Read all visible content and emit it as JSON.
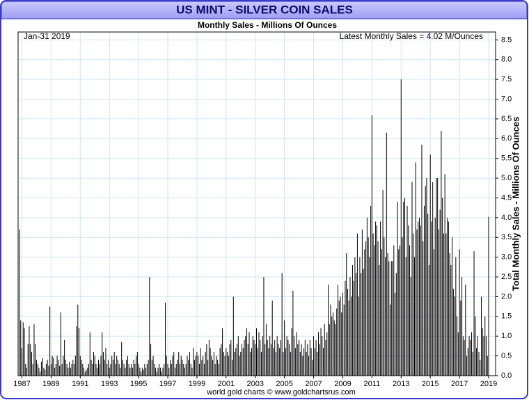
{
  "chart_data": {
    "type": "bar",
    "title": "US MINT - SILVER COIN SALES",
    "subtitle": "Monthly Sales - Millions Of Ounces",
    "date_label": "Jan-31  2019",
    "annotation": "Latest Monthly Sales = 4.02 M/Ounces",
    "y_label": "Total Monthly Sales - Millions Of Ounces",
    "footer": "world gold charts © www.goldchartsrus.com",
    "color": "#000000",
    "grid": true,
    "ylim": [
      0,
      8.7
    ],
    "yticks": [
      {
        "value": 0,
        "label": "0.0"
      },
      0.5,
      {
        "value": 1,
        "label": "1.0"
      },
      1.5,
      {
        "value": 2,
        "label": "2.0"
      },
      2.5,
      {
        "value": 3,
        "label": "3.0"
      },
      3.5,
      {
        "value": 4,
        "label": "4.0"
      },
      4.5,
      {
        "value": 5,
        "label": "5.0"
      },
      5.5,
      {
        "value": 6,
        "label": "6.0"
      },
      6.5,
      {
        "value": 7,
        "label": "7.0"
      },
      7.5,
      {
        "value": 8,
        "label": "8.0"
      },
      8.5
    ],
    "categories": [
      null,
      null,
      "1987",
      null,
      null,
      null,
      null,
      null,
      null,
      null,
      null,
      null,
      null,
      null,
      null,
      null,
      null,
      null,
      null,
      null,
      null,
      null,
      null,
      null,
      null,
      null,
      "1989",
      null,
      null,
      null,
      null,
      null,
      null,
      null,
      null,
      null,
      null,
      null,
      null,
      null,
      null,
      null,
      null,
      null,
      null,
      null,
      null,
      null,
      null,
      null,
      "1991",
      null,
      null,
      null,
      null,
      null,
      null,
      null,
      null,
      null,
      null,
      null,
      null,
      null,
      null,
      null,
      null,
      null,
      null,
      null,
      null,
      null,
      null,
      null,
      "1993",
      null,
      null,
      null,
      null,
      null,
      null,
      null,
      null,
      null,
      null,
      null,
      null,
      null,
      null,
      null,
      null,
      null,
      null,
      null,
      null,
      null,
      null,
      null,
      "1995",
      null,
      null,
      null,
      null,
      null,
      null,
      null,
      null,
      null,
      null,
      null,
      null,
      null,
      null,
      null,
      null,
      null,
      null,
      null,
      null,
      null,
      null,
      null,
      "1997",
      null,
      null,
      null,
      null,
      null,
      null,
      null,
      null,
      null,
      null,
      null,
      null,
      null,
      null,
      null,
      null,
      null,
      null,
      null,
      null,
      null,
      null,
      null,
      "1999",
      null,
      null,
      null,
      null,
      null,
      null,
      null,
      null,
      null,
      null,
      null,
      null,
      null,
      null,
      null,
      null,
      null,
      null,
      null,
      null,
      null,
      null,
      null,
      "2001",
      null,
      null,
      null,
      null,
      null,
      null,
      null,
      null,
      null,
      null,
      null,
      null,
      null,
      null,
      null,
      null,
      null,
      null,
      null,
      null,
      null,
      null,
      null,
      "2003",
      null,
      null,
      null,
      null,
      null,
      null,
      null,
      null,
      null,
      null,
      null,
      null,
      null,
      null,
      null,
      null,
      null,
      null,
      null,
      null,
      null,
      null,
      null,
      "2005",
      null,
      null,
      null,
      null,
      null,
      null,
      null,
      null,
      null,
      null,
      null,
      null,
      null,
      null,
      null,
      null,
      null,
      null,
      null,
      null,
      null,
      null,
      null,
      "2007",
      null,
      null,
      null,
      null,
      null,
      null,
      null,
      null,
      null,
      null,
      null,
      null,
      null,
      null,
      null,
      null,
      null,
      null,
      null,
      null,
      null,
      null,
      null,
      "2009",
      null,
      null,
      null,
      null,
      null,
      null,
      null,
      null,
      null,
      null,
      null,
      null,
      null,
      null,
      null,
      null,
      null,
      null,
      null,
      null,
      null,
      null,
      null,
      "2011",
      null,
      null,
      null,
      null,
      null,
      null,
      null,
      null,
      null,
      null,
      null,
      null,
      null,
      null,
      null,
      null,
      null,
      null,
      null,
      null,
      null,
      null,
      null,
      "2013",
      null,
      null,
      null,
      null,
      null,
      null,
      null,
      null,
      null,
      null,
      null,
      null,
      null,
      null,
      null,
      null,
      null,
      null,
      null,
      null,
      null,
      null,
      null,
      "2015",
      null,
      null,
      null,
      null,
      null,
      null,
      null,
      null,
      null,
      null,
      null,
      null,
      null,
      null,
      null,
      null,
      null,
      null,
      null,
      null,
      null,
      null,
      null,
      "2017",
      null,
      null,
      null,
      null,
      null,
      null,
      null,
      null,
      null,
      null,
      null,
      null,
      null,
      null,
      null,
      null,
      null,
      null,
      null,
      null,
      null,
      null,
      null,
      "2019"
    ],
    "values": [
      3.7,
      1.4,
      0.7,
      1.35,
      1.2,
      0.3,
      0.2,
      0.8,
      1.25,
      0.8,
      0.6,
      0.3,
      1.3,
      0.8,
      0.4,
      0.3,
      0.2,
      0.1,
      0.35,
      0.45,
      0.2,
      0.15,
      0.3,
      0.4,
      0.25,
      1.75,
      0.3,
      0.5,
      0.45,
      0.2,
      0.3,
      0.5,
      0.4,
      0.25,
      1.6,
      0.3,
      0.5,
      0.9,
      0.4,
      0.3,
      0.2,
      0.35,
      0.2,
      0.3,
      0.4,
      0.3,
      0.5,
      1.25,
      1.8,
      1.2,
      0.5,
      0.4,
      0.3,
      0.2,
      0.1,
      0.15,
      0.2,
      0.3,
      1.1,
      0.4,
      0.3,
      0.6,
      0.5,
      0.3,
      0.2,
      0.4,
      0.3,
      0.5,
      1.1,
      0.6,
      0.4,
      0.7,
      0.3,
      0.4,
      0.2,
      0.3,
      0.5,
      0.4,
      0.6,
      0.3,
      0.5,
      0.4,
      0.3,
      0.2,
      0.85,
      0.4,
      0.3,
      0.2,
      0.4,
      0.5,
      0.3,
      0.2,
      0.3,
      0.2,
      0.4,
      0.3,
      0.5,
      0.6,
      0.3,
      0.2,
      0.1,
      0.2,
      0.15,
      0.3,
      0.2,
      0.3,
      0.4,
      2.5,
      0.8,
      0.4,
      0.5,
      0.3,
      0.2,
      0.1,
      0.2,
      0.3,
      0.2,
      0.1,
      0.2,
      0.3,
      1.85,
      0.5,
      0.3,
      0.2,
      0.4,
      0.3,
      0.5,
      0.6,
      0.2,
      0.3,
      0.4,
      0.6,
      0.3,
      0.5,
      0.4,
      0.3,
      0.2,
      0.3,
      0.5,
      0.4,
      0.6,
      0.3,
      0.2,
      0.7,
      0.4,
      0.5,
      0.6,
      0.5,
      0.3,
      0.7,
      0.4,
      0.5,
      0.3,
      0.6,
      0.8,
      0.4,
      0.9,
      0.7,
      0.5,
      0.4,
      0.6,
      0.3,
      0.5,
      0.4,
      0.3,
      0.7,
      0.8,
      1.2,
      0.6,
      0.5,
      0.7,
      0.6,
      0.5,
      0.8,
      0.9,
      0.4,
      2.0,
      0.6,
      0.7,
      0.8,
      1.0,
      0.5,
      0.6,
      0.8,
      0.7,
      0.9,
      1.0,
      1.2,
      0.8,
      1.1,
      0.6,
      0.7,
      1.0,
      0.9,
      0.8,
      1.2,
      0.7,
      1.1,
      0.9,
      0.6,
      1.0,
      2.5,
      0.8,
      1.3,
      0.9,
      0.7,
      1.0,
      0.8,
      1.9,
      0.7,
      0.9,
      0.6,
      1.0,
      0.8,
      0.7,
      0.9,
      2.6,
      0.6,
      1.4,
      0.7,
      1.0,
      0.9,
      0.8,
      0.6,
      1.2,
      2.15,
      1.0,
      0.7,
      1.1,
      0.8,
      0.9,
      0.6,
      0.8,
      0.5,
      0.7,
      0.9,
      0.6,
      0.8,
      0.5,
      0.9,
      0.7,
      0.4,
      1.0,
      0.7,
      0.9,
      0.6,
      1.1,
      0.8,
      1.2,
      1.0,
      0.7,
      1.3,
      0.9,
      1.1,
      2.3,
      1.3,
      1.8,
      1.5,
      1.6,
      1.4,
      1.3,
      1.7,
      2.3,
      1.9,
      2.0,
      1.6,
      2.1,
      1.8,
      2.4,
      3.1,
      2.2,
      1.9,
      2.5,
      2.0,
      2.8,
      2.4,
      3.0,
      2.6,
      3.6,
      2.0,
      3.0,
      2.6,
      3.7,
      2.7,
      3.2,
      3.4,
      4.0,
      3.5,
      3.0,
      4.3,
      6.6,
      3.6,
      3.3,
      3.9,
      3.8,
      3.4,
      2.8,
      3.9,
      3.2,
      4.7,
      3.5,
      3.0,
      6.15,
      3.1,
      2.9,
      1.8,
      2.9,
      2.9,
      3.3,
      2.1,
      2.6,
      4.4,
      3.2,
      3.3,
      7.5,
      3.5,
      4.4,
      4.5,
      3.0,
      4.3,
      3.8,
      3.3,
      2.5,
      4.9,
      3.6,
      3.0,
      5.4,
      3.7,
      3.9,
      4.0,
      3.8,
      5.85,
      3.4,
      4.3,
      4.8,
      5.0,
      4.1,
      2.8,
      5.6,
      3.9,
      4.9,
      3.2,
      4.0,
      5.0,
      5.0,
      3.7,
      4.2,
      6.2,
      4.5,
      3.6,
      5.1,
      3.6,
      4.0,
      3.9,
      3.1,
      2.8,
      3.5,
      2.2,
      2.0,
      3.0,
      1.5,
      1.1,
      3.2,
      1.9,
      2.5,
      1.0,
      0.9,
      2.3,
      0.5,
      0.7,
      1.0,
      0.9,
      1.1,
      0.6,
      3.15,
      1.5,
      0.7,
      1.0,
      0.6,
      0.4,
      2.0,
      1.2,
      1.0,
      1.5,
      1.0,
      0.5,
      4.02
    ]
  }
}
